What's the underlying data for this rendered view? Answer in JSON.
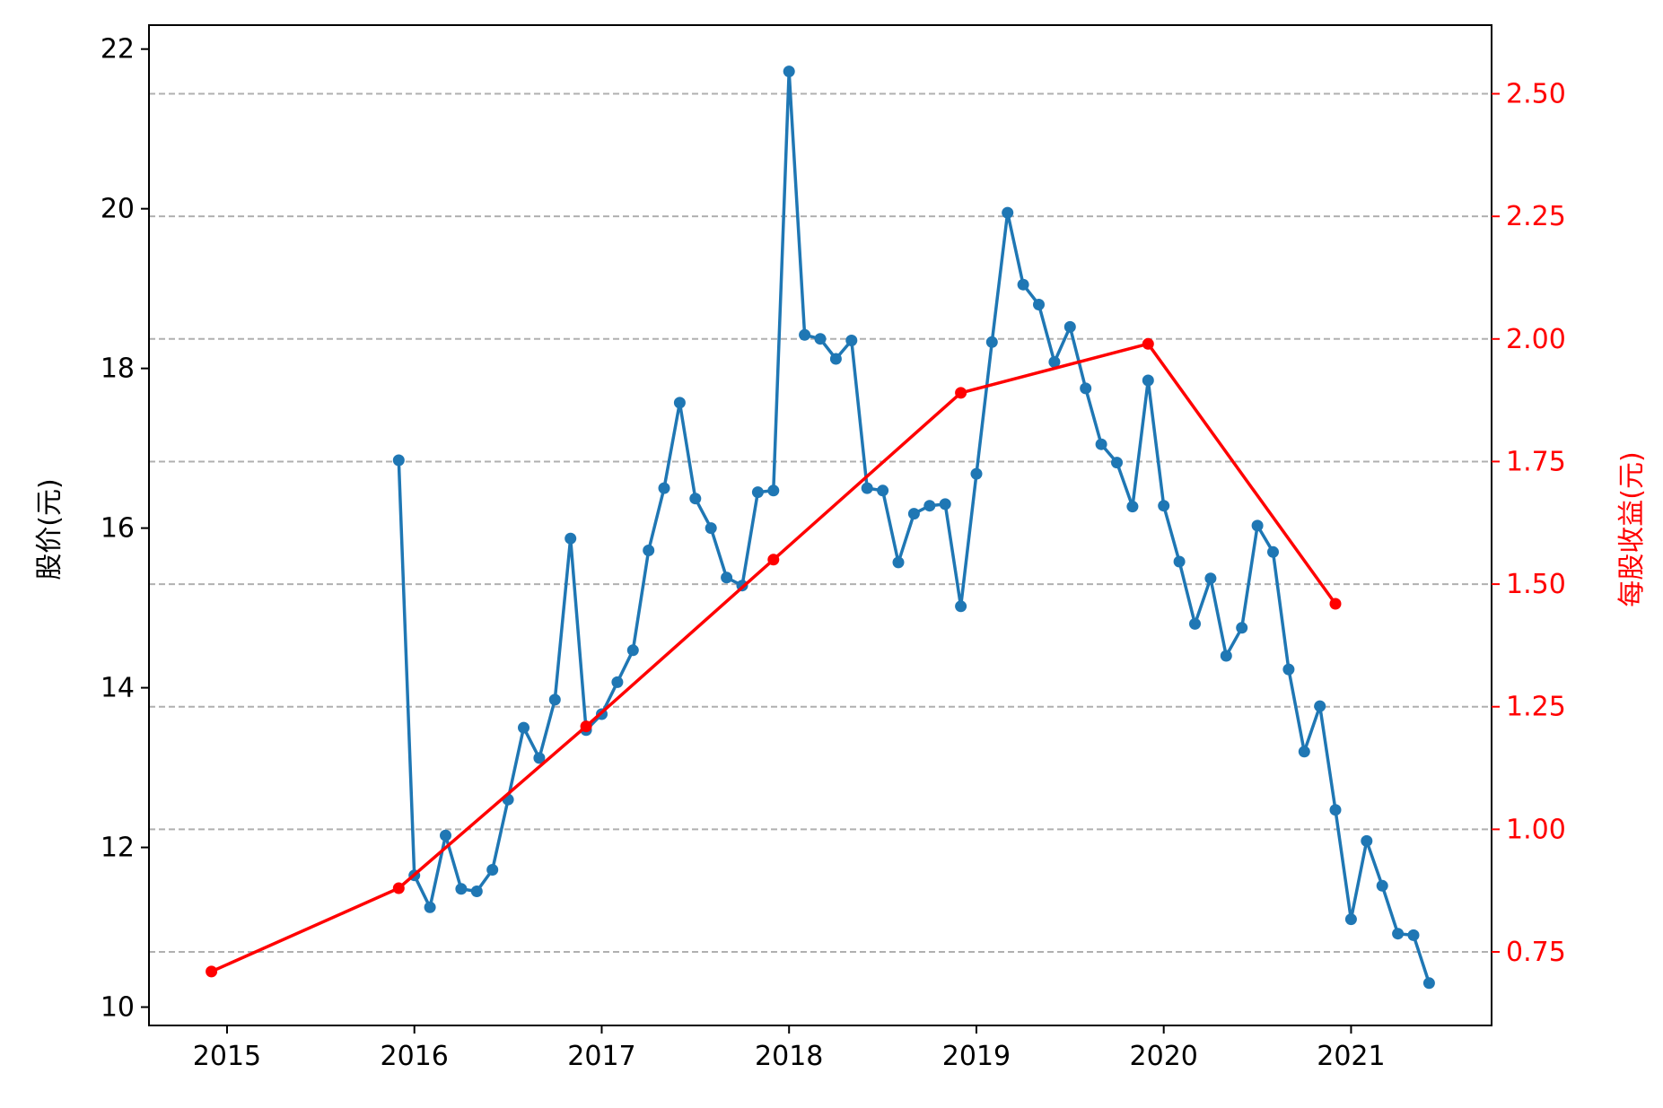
{
  "chart_data": {
    "type": "line",
    "title": "",
    "xlabel": "",
    "ylabel": "股价(元)",
    "y2label": "每股收益(元)",
    "xlim": [
      "2014-08",
      "2021-10"
    ],
    "ylim": [
      9.77,
      22.3
    ],
    "y2lim": [
      0.6,
      2.64
    ],
    "x_ticks": [
      "2015",
      "2016",
      "2017",
      "2018",
      "2019",
      "2020",
      "2021"
    ],
    "y_ticks": [
      "10",
      "12",
      "14",
      "16",
      "18",
      "20",
      "22"
    ],
    "y2_ticks": [
      "0.75",
      "1.00",
      "1.25",
      "1.50",
      "1.75",
      "2.00",
      "2.25",
      "2.50"
    ],
    "grid": "horizontal dashed at right-axis ticks",
    "colors": {
      "price": "#1f77b4",
      "eps": "#ff0000",
      "grid": "#b0b0b0",
      "left_axis_text": "#000000",
      "right_axis_text": "#ff0000"
    },
    "series": [
      {
        "axis": "left",
        "color": "#1f77b4",
        "points": [
          [
            "2015-12",
            16.85
          ],
          [
            "2016-01",
            11.65
          ],
          [
            "2016-02",
            11.25
          ],
          [
            "2016-03",
            12.15
          ],
          [
            "2016-04",
            11.48
          ],
          [
            "2016-05",
            11.45
          ],
          [
            "2016-06",
            11.72
          ],
          [
            "2016-07",
            12.6
          ],
          [
            "2016-08",
            13.5
          ],
          [
            "2016-09",
            13.12
          ],
          [
            "2016-10",
            13.85
          ],
          [
            "2016-11",
            15.87
          ],
          [
            "2016-12",
            13.47
          ],
          [
            "2017-01",
            13.67
          ],
          [
            "2017-02",
            14.07
          ],
          [
            "2017-03",
            14.47
          ],
          [
            "2017-04",
            15.72
          ],
          [
            "2017-05",
            16.5
          ],
          [
            "2017-06",
            17.57
          ],
          [
            "2017-07",
            16.37
          ],
          [
            "2017-08",
            16.0
          ],
          [
            "2017-09",
            15.38
          ],
          [
            "2017-10",
            15.28
          ],
          [
            "2017-11",
            16.45
          ],
          [
            "2017-12",
            16.47
          ],
          [
            "2018-01",
            21.72
          ],
          [
            "2018-02",
            18.42
          ],
          [
            "2018-03",
            18.37
          ],
          [
            "2018-04",
            18.12
          ],
          [
            "2018-05",
            18.35
          ],
          [
            "2018-06",
            16.5
          ],
          [
            "2018-07",
            16.47
          ],
          [
            "2018-08",
            15.57
          ],
          [
            "2018-09",
            16.18
          ],
          [
            "2018-10",
            16.28
          ],
          [
            "2018-11",
            16.3
          ],
          [
            "2018-12",
            15.02
          ],
          [
            "2019-01",
            16.68
          ],
          [
            "2019-02",
            18.33
          ],
          [
            "2019-03",
            19.95
          ],
          [
            "2019-04",
            19.05
          ],
          [
            "2019-05",
            18.8
          ],
          [
            "2019-06",
            18.08
          ],
          [
            "2019-07",
            18.52
          ],
          [
            "2019-08",
            17.75
          ],
          [
            "2019-09",
            17.05
          ],
          [
            "2019-10",
            16.82
          ],
          [
            "2019-11",
            16.27
          ],
          [
            "2019-12",
            17.85
          ],
          [
            "2020-01",
            16.28
          ],
          [
            "2020-02",
            15.58
          ],
          [
            "2020-03",
            14.8
          ],
          [
            "2020-04",
            15.37
          ],
          [
            "2020-05",
            14.4
          ],
          [
            "2020-06",
            14.75
          ],
          [
            "2020-07",
            16.03
          ],
          [
            "2020-08",
            15.7
          ],
          [
            "2020-09",
            14.23
          ],
          [
            "2020-10",
            13.2
          ],
          [
            "2020-11",
            13.77
          ],
          [
            "2020-12",
            12.47
          ],
          [
            "2021-01",
            11.1
          ],
          [
            "2021-02",
            12.08
          ],
          [
            "2021-03",
            11.52
          ],
          [
            "2021-04",
            10.92
          ],
          [
            "2021-05",
            10.9
          ],
          [
            "2021-06",
            10.3
          ]
        ]
      },
      {
        "axis": "right",
        "color": "#ff0000",
        "points": [
          [
            "2014-12",
            0.71
          ],
          [
            "2015-12",
            0.88
          ],
          [
            "2016-12",
            1.21
          ],
          [
            "2017-12",
            1.55
          ],
          [
            "2018-12",
            1.89
          ],
          [
            "2019-12",
            1.99
          ],
          [
            "2020-12",
            1.46
          ]
        ]
      }
    ]
  }
}
